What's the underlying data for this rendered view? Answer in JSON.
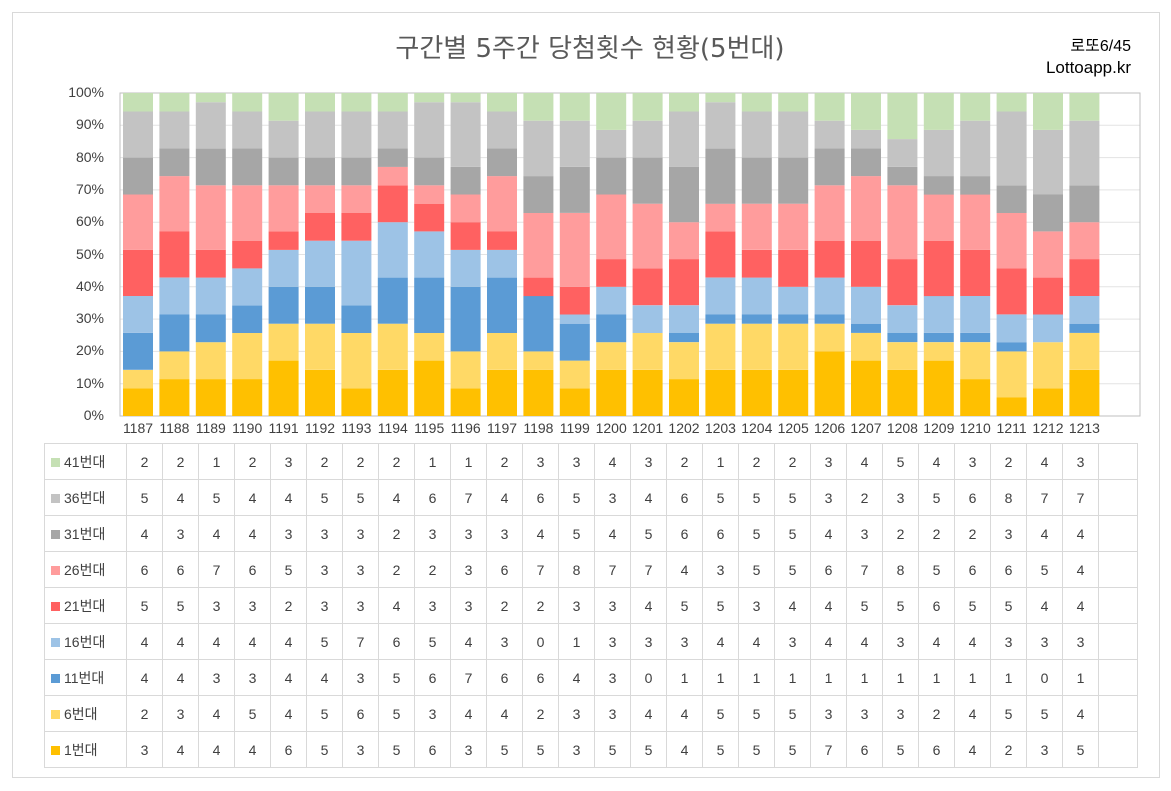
{
  "chart_data": {
    "type": "bar",
    "stacked": "percent",
    "title": "구간별 5주간 당첨횟수 현황(5번대)",
    "brand": "로또6/45",
    "site": "Lottoapp.kr",
    "ytick_labels": [
      "0%",
      "10%",
      "20%",
      "30%",
      "40%",
      "50%",
      "60%",
      "70%",
      "80%",
      "90%",
      "100%"
    ],
    "ylim": [
      0,
      100
    ],
    "categories": [
      "1187",
      "1188",
      "1189",
      "1190",
      "1191",
      "1192",
      "1193",
      "1194",
      "1195",
      "1196",
      "1197",
      "1198",
      "1199",
      "1200",
      "1201",
      "1202",
      "1203",
      "1204",
      "1205",
      "1206",
      "1207",
      "1208",
      "1209",
      "1210",
      "1211",
      "1212",
      "1213"
    ],
    "series": [
      {
        "name": "1번대",
        "color": "#ffc000",
        "values": [
          3,
          4,
          4,
          4,
          6,
          5,
          3,
          5,
          6,
          3,
          5,
          5,
          3,
          5,
          5,
          4,
          5,
          5,
          5,
          7,
          6,
          5,
          6,
          4,
          2,
          3,
          5
        ]
      },
      {
        "name": "6번대",
        "color": "#ffd966",
        "values": [
          2,
          3,
          4,
          5,
          4,
          5,
          6,
          5,
          3,
          4,
          4,
          2,
          3,
          3,
          4,
          4,
          5,
          5,
          5,
          3,
          3,
          3,
          2,
          4,
          5,
          5,
          4
        ]
      },
      {
        "name": "11번대",
        "color": "#5b9bd5",
        "values": [
          4,
          4,
          3,
          3,
          4,
          4,
          3,
          5,
          6,
          7,
          6,
          6,
          4,
          3,
          0,
          1,
          1,
          1,
          1,
          1,
          1,
          1,
          1,
          1,
          1,
          0,
          1
        ]
      },
      {
        "name": "16번대",
        "color": "#9dc3e6",
        "values": [
          4,
          4,
          4,
          4,
          4,
          5,
          7,
          6,
          5,
          4,
          3,
          0,
          1,
          3,
          3,
          3,
          4,
          4,
          3,
          4,
          4,
          3,
          4,
          4,
          3,
          3,
          3
        ]
      },
      {
        "name": "21번대",
        "color": "#ff6161",
        "values": [
          5,
          5,
          3,
          3,
          2,
          3,
          3,
          4,
          3,
          3,
          2,
          2,
          3,
          3,
          4,
          5,
          5,
          3,
          4,
          4,
          5,
          5,
          6,
          5,
          5,
          4,
          4
        ]
      },
      {
        "name": "26번대",
        "color": "#ff9c9c",
        "values": [
          6,
          6,
          7,
          6,
          5,
          3,
          3,
          2,
          2,
          3,
          6,
          7,
          8,
          7,
          7,
          4,
          3,
          5,
          5,
          6,
          7,
          8,
          5,
          6,
          6,
          5,
          4
        ]
      },
      {
        "name": "31번대",
        "color": "#a6a6a6",
        "values": [
          4,
          3,
          4,
          4,
          3,
          3,
          3,
          2,
          3,
          3,
          3,
          4,
          5,
          4,
          5,
          6,
          6,
          5,
          5,
          4,
          3,
          2,
          2,
          2,
          3,
          4,
          4
        ]
      },
      {
        "name": "36번대",
        "color": "#c3c3c3",
        "values": [
          5,
          4,
          5,
          4,
          4,
          5,
          5,
          4,
          6,
          7,
          4,
          6,
          5,
          3,
          4,
          6,
          5,
          5,
          5,
          3,
          2,
          3,
          5,
          6,
          8,
          7,
          7
        ]
      },
      {
        "name": "41번대",
        "color": "#c5e0b4",
        "values": [
          2,
          2,
          1,
          2,
          3,
          2,
          2,
          2,
          1,
          1,
          2,
          3,
          3,
          4,
          3,
          2,
          1,
          2,
          2,
          3,
          4,
          5,
          4,
          3,
          2,
          4,
          3
        ]
      }
    ]
  }
}
